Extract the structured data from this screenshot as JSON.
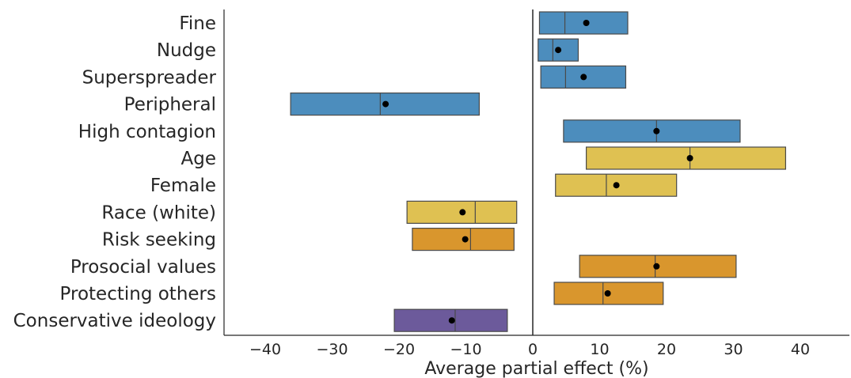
{
  "chart_data": {
    "type": "bar",
    "orientation": "horizontal",
    "xlabel": "Average partial effect (%)",
    "ylabel": "",
    "xlim": [
      -46,
      47
    ],
    "xticks": [
      -40,
      -30,
      -20,
      -10,
      0,
      10,
      20,
      30,
      40
    ],
    "xtick_labels": [
      "−40",
      "−30",
      "−20",
      "−10",
      "0",
      "10",
      "20",
      "30",
      "40"
    ],
    "grid": false,
    "reference_line_x": 0,
    "categories": [
      {
        "label": "Fine",
        "low": 1.0,
        "median": 4.8,
        "high": 14.2,
        "mean": 8.0,
        "color": "#4c8dbd"
      },
      {
        "label": "Nudge",
        "low": 0.8,
        "median": 3.0,
        "high": 6.8,
        "mean": 3.8,
        "color": "#4c8dbd"
      },
      {
        "label": "Superspreader",
        "low": 1.2,
        "median": 4.9,
        "high": 13.9,
        "mean": 7.6,
        "color": "#4c8dbd"
      },
      {
        "label": "Peripheral",
        "low": -36.2,
        "median": -22.8,
        "high": -8.0,
        "mean": -22.0,
        "color": "#4c8dbd"
      },
      {
        "label": "High contagion",
        "low": 4.6,
        "median": 18.5,
        "high": 31.0,
        "mean": 18.5,
        "color": "#4c8dbd"
      },
      {
        "label": "Age",
        "low": 8.0,
        "median": 23.5,
        "high": 37.8,
        "mean": 23.5,
        "color": "#dfc152"
      },
      {
        "label": "Female",
        "low": 3.4,
        "median": 11.0,
        "high": 21.5,
        "mean": 12.5,
        "color": "#dfc152"
      },
      {
        "label": "Race (white)",
        "low": -18.8,
        "median": -8.6,
        "high": -2.4,
        "mean": -10.5,
        "color": "#dfc152"
      },
      {
        "label": "Risk seeking",
        "low": -18.0,
        "median": -9.3,
        "high": -2.8,
        "mean": -10.1,
        "color": "#d9962d"
      },
      {
        "label": "Prosocial values",
        "low": 7.0,
        "median": 18.3,
        "high": 30.4,
        "mean": 18.5,
        "color": "#d9962d"
      },
      {
        "label": "Protecting others",
        "low": 3.2,
        "median": 10.5,
        "high": 19.5,
        "mean": 11.2,
        "color": "#d9962d"
      },
      {
        "label": "Conservative ideology",
        "low": -20.7,
        "median": -11.6,
        "high": -3.8,
        "mean": -12.1,
        "color": "#6c5a9b"
      }
    ]
  }
}
